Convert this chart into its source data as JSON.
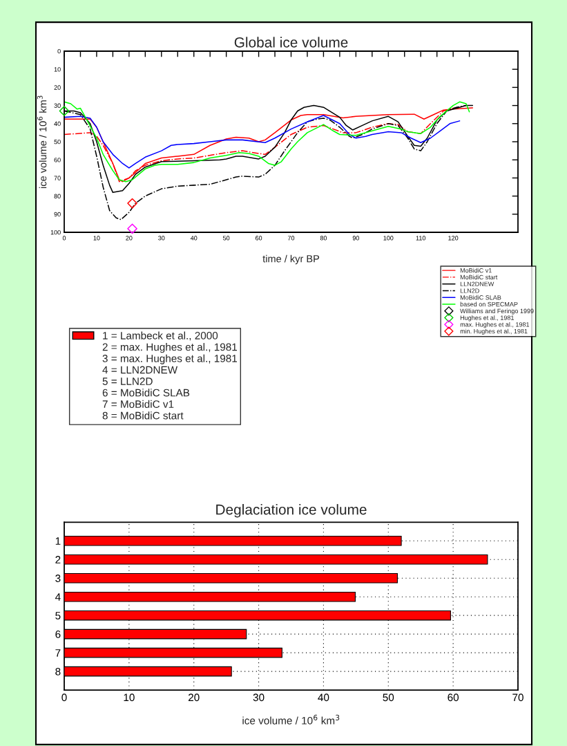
{
  "chart_data": [
    {
      "type": "line",
      "title": "Global ice volume",
      "xlabel": "time / kyr BP",
      "ylabel": "ice volume / 10$^{6}$ km$^{3}$",
      "xlim": [
        0,
        140
      ],
      "ylim": [
        100,
        0
      ],
      "xticks": [
        0,
        {
          "value": 5,
          "label": null
        },
        10,
        {
          "value": 15,
          "label": null
        },
        20,
        {
          "value": 25,
          "label": null
        },
        30,
        {
          "value": 35,
          "label": null
        },
        40,
        {
          "value": 45,
          "label": null
        },
        50,
        {
          "value": 55,
          "label": null
        },
        60,
        {
          "value": 65,
          "label": null
        },
        70,
        {
          "value": 75,
          "label": null
        },
        80,
        {
          "value": 85,
          "label": null
        },
        90,
        {
          "value": 95,
          "label": null
        },
        100,
        {
          "value": 105,
          "label": null
        },
        110,
        {
          "value": 115,
          "label": null
        },
        120,
        {
          "value": 125,
          "label": null
        }
      ],
      "yticks": [
        0,
        10,
        20,
        30,
        40,
        50,
        60,
        70,
        80,
        90,
        100
      ],
      "legend": "bottom right",
      "series": [
        {
          "name": "MoBidiC v1",
          "color": "#ff0000",
          "line_style": "solid",
          "x": [
            0,
            8,
            10,
            12,
            15,
            17,
            18,
            20,
            22,
            25,
            30,
            35,
            40,
            45,
            50,
            53,
            57,
            60,
            62,
            65,
            70,
            73,
            75,
            80,
            86,
            90,
            100,
            108,
            111,
            114,
            117,
            120,
            126
          ],
          "values": [
            37.5,
            37.5,
            42,
            50,
            62,
            71,
            72,
            70,
            67,
            62,
            59,
            58,
            57,
            52,
            48.5,
            47.5,
            48,
            50,
            49,
            45,
            38,
            35.5,
            35,
            35,
            36.8,
            36,
            35,
            34.8,
            37.5,
            35,
            32.5,
            32,
            31.3
          ]
        },
        {
          "name": "MoBidiC start",
          "color": "#ff0000",
          "line_style": "dashdot",
          "x": [
            0,
            8,
            10,
            12,
            15,
            17,
            20,
            22,
            25,
            30,
            35,
            40,
            50,
            55,
            60,
            62,
            65,
            70,
            75,
            80,
            86,
            90,
            95,
            100,
            103,
            106,
            110,
            113,
            117,
            120,
            122
          ],
          "values": [
            46,
            45,
            47,
            52,
            62,
            72,
            70,
            66,
            63,
            60.5,
            59.5,
            59,
            56,
            55,
            56.5,
            57,
            53,
            46,
            42,
            41,
            45,
            45,
            42,
            40,
            40.5,
            44.5,
            45.5,
            40,
            33,
            31.5,
            31
          ]
        },
        {
          "name": "LLN2DNEW",
          "color": "#000000",
          "line_style": "solid",
          "x": [
            0,
            3,
            5,
            8,
            10,
            12,
            14,
            15,
            18,
            20,
            22,
            25,
            30,
            40,
            48,
            50,
            53,
            55,
            60,
            62,
            65,
            68,
            70,
            72,
            74,
            77,
            80,
            85,
            87,
            89,
            92,
            95,
            100,
            103,
            106,
            108,
            110,
            112,
            115,
            118,
            122,
            124,
            126
          ],
          "values": [
            33,
            33,
            34,
            40,
            50,
            63,
            74,
            78,
            77,
            73,
            68,
            64,
            61,
            60.5,
            60,
            59.5,
            58,
            58,
            59.5,
            58,
            53,
            45,
            38,
            33,
            31,
            30,
            31,
            36.5,
            41,
            43.5,
            41,
            38.5,
            36,
            39,
            47,
            52,
            52.5,
            48,
            38,
            33,
            31,
            30,
            30
          ]
        },
        {
          "name": "LLN2D",
          "color": "#000000",
          "line_style": "dashdot",
          "x": [
            0,
            5,
            8,
            10,
            12,
            14,
            16,
            17.5,
            20,
            22,
            25,
            30,
            35,
            40,
            45,
            50,
            53,
            55,
            60,
            62,
            65,
            68,
            70,
            72,
            75,
            78,
            80,
            82,
            85,
            88,
            89,
            92,
            95,
            100,
            103,
            106,
            108,
            110,
            112,
            115,
            118,
            121,
            124
          ],
          "values": [
            33,
            35,
            43,
            58,
            75,
            88,
            92,
            93,
            89,
            84,
            80,
            76,
            74.5,
            74,
            73.5,
            71,
            69.5,
            69,
            69.5,
            68,
            63,
            55,
            50,
            45,
            39,
            37.5,
            37,
            38,
            42,
            47,
            48,
            46,
            43,
            40,
            41,
            48,
            54,
            55,
            50,
            40,
            33,
            31,
            30
          ]
        },
        {
          "name": "MoBidiC SLAB",
          "color": "#0000ff",
          "line_style": "solid",
          "x": [
            0,
            5,
            8,
            10,
            12,
            15,
            18,
            20,
            22,
            25,
            30,
            33,
            35,
            40,
            45,
            50,
            55,
            62,
            65,
            70,
            75,
            80,
            85,
            88,
            90,
            93,
            95,
            100,
            104,
            107,
            110,
            113,
            116,
            119,
            122
          ],
          "values": [
            36.5,
            36,
            37,
            42,
            50,
            57,
            62,
            64.5,
            62,
            58.5,
            55,
            52,
            51.5,
            51,
            50,
            49,
            49,
            50.5,
            48,
            43,
            39,
            35.5,
            40,
            46,
            48,
            47,
            46,
            44.5,
            45,
            48,
            50.5,
            48,
            44,
            40,
            38.5
          ]
        },
        {
          "name": "based on SPECMAP",
          "color": "#00ff00",
          "line_style": "solid",
          "x": [
            0,
            2,
            4,
            5,
            7,
            10,
            12,
            15,
            17,
            19,
            21,
            23,
            25,
            28,
            30,
            35,
            40,
            45,
            50,
            54,
            57,
            60,
            63,
            65,
            67,
            70,
            72,
            75,
            80,
            83,
            85,
            90,
            95,
            100,
            104,
            106,
            110,
            113,
            116,
            120,
            122,
            124,
            125
          ],
          "values": [
            28,
            29,
            32,
            31.5,
            38,
            48,
            57,
            66,
            71,
            72,
            71,
            68,
            65,
            63,
            62.5,
            62.5,
            61.5,
            59,
            57.5,
            56,
            56.5,
            58,
            62,
            63,
            61,
            54,
            50,
            45,
            40.5,
            44,
            46,
            46.5,
            44,
            41.5,
            43,
            44.5,
            45.5,
            42,
            36,
            30,
            28,
            29,
            33.5
          ]
        },
        {
          "name": "Williams and Feringo 1999",
          "type": "scatter",
          "marker": "diamond",
          "color": "#000000"
        },
        {
          "name": "Hughes et al., 1981",
          "type": "scatter",
          "marker": "diamond",
          "color": "#00cc00",
          "x": [
            0
          ],
          "values": [
            33
          ]
        },
        {
          "name": "max. Hughes et al., 1981",
          "type": "scatter",
          "marker": "diamond",
          "color": "#ff00ff",
          "x": [
            21
          ],
          "values": [
            98
          ]
        },
        {
          "name": "min. Hughes et al., 1981",
          "type": "scatter",
          "marker": "diamond",
          "color": "#ff0000",
          "x": [
            21
          ],
          "values": [
            84
          ]
        }
      ]
    },
    {
      "type": "bar",
      "orientation": "horizontal",
      "title": "Deglaciation ice volume",
      "xlabel": "ice volume / 10$^{6}$ km$^{3}$",
      "categories": [
        "1",
        "2",
        "3",
        "4",
        "5",
        "6",
        "7",
        "8"
      ],
      "xlim": [
        0,
        70
      ],
      "xticks": [
        0,
        10,
        20,
        30,
        40,
        50,
        60,
        70
      ],
      "grid": true,
      "legend": "top left",
      "series": [
        {
          "name": "1 = Lambeck et al., 2000",
          "color": "#ff0000",
          "values": [
            52.0,
            65.3,
            51.4,
            44.9,
            59.6,
            28.1,
            33.6,
            25.8
          ]
        }
      ],
      "annotations": [
        "2 = max. Hughes et al., 1981",
        "3 = max. Hughes et al., 1981",
        "4 = LLN2DNEW",
        "5 = LLN2D",
        "6 = MoBidiC SLAB",
        "7 = MoBidiC v1",
        "8 = MoBidiC start"
      ]
    }
  ]
}
